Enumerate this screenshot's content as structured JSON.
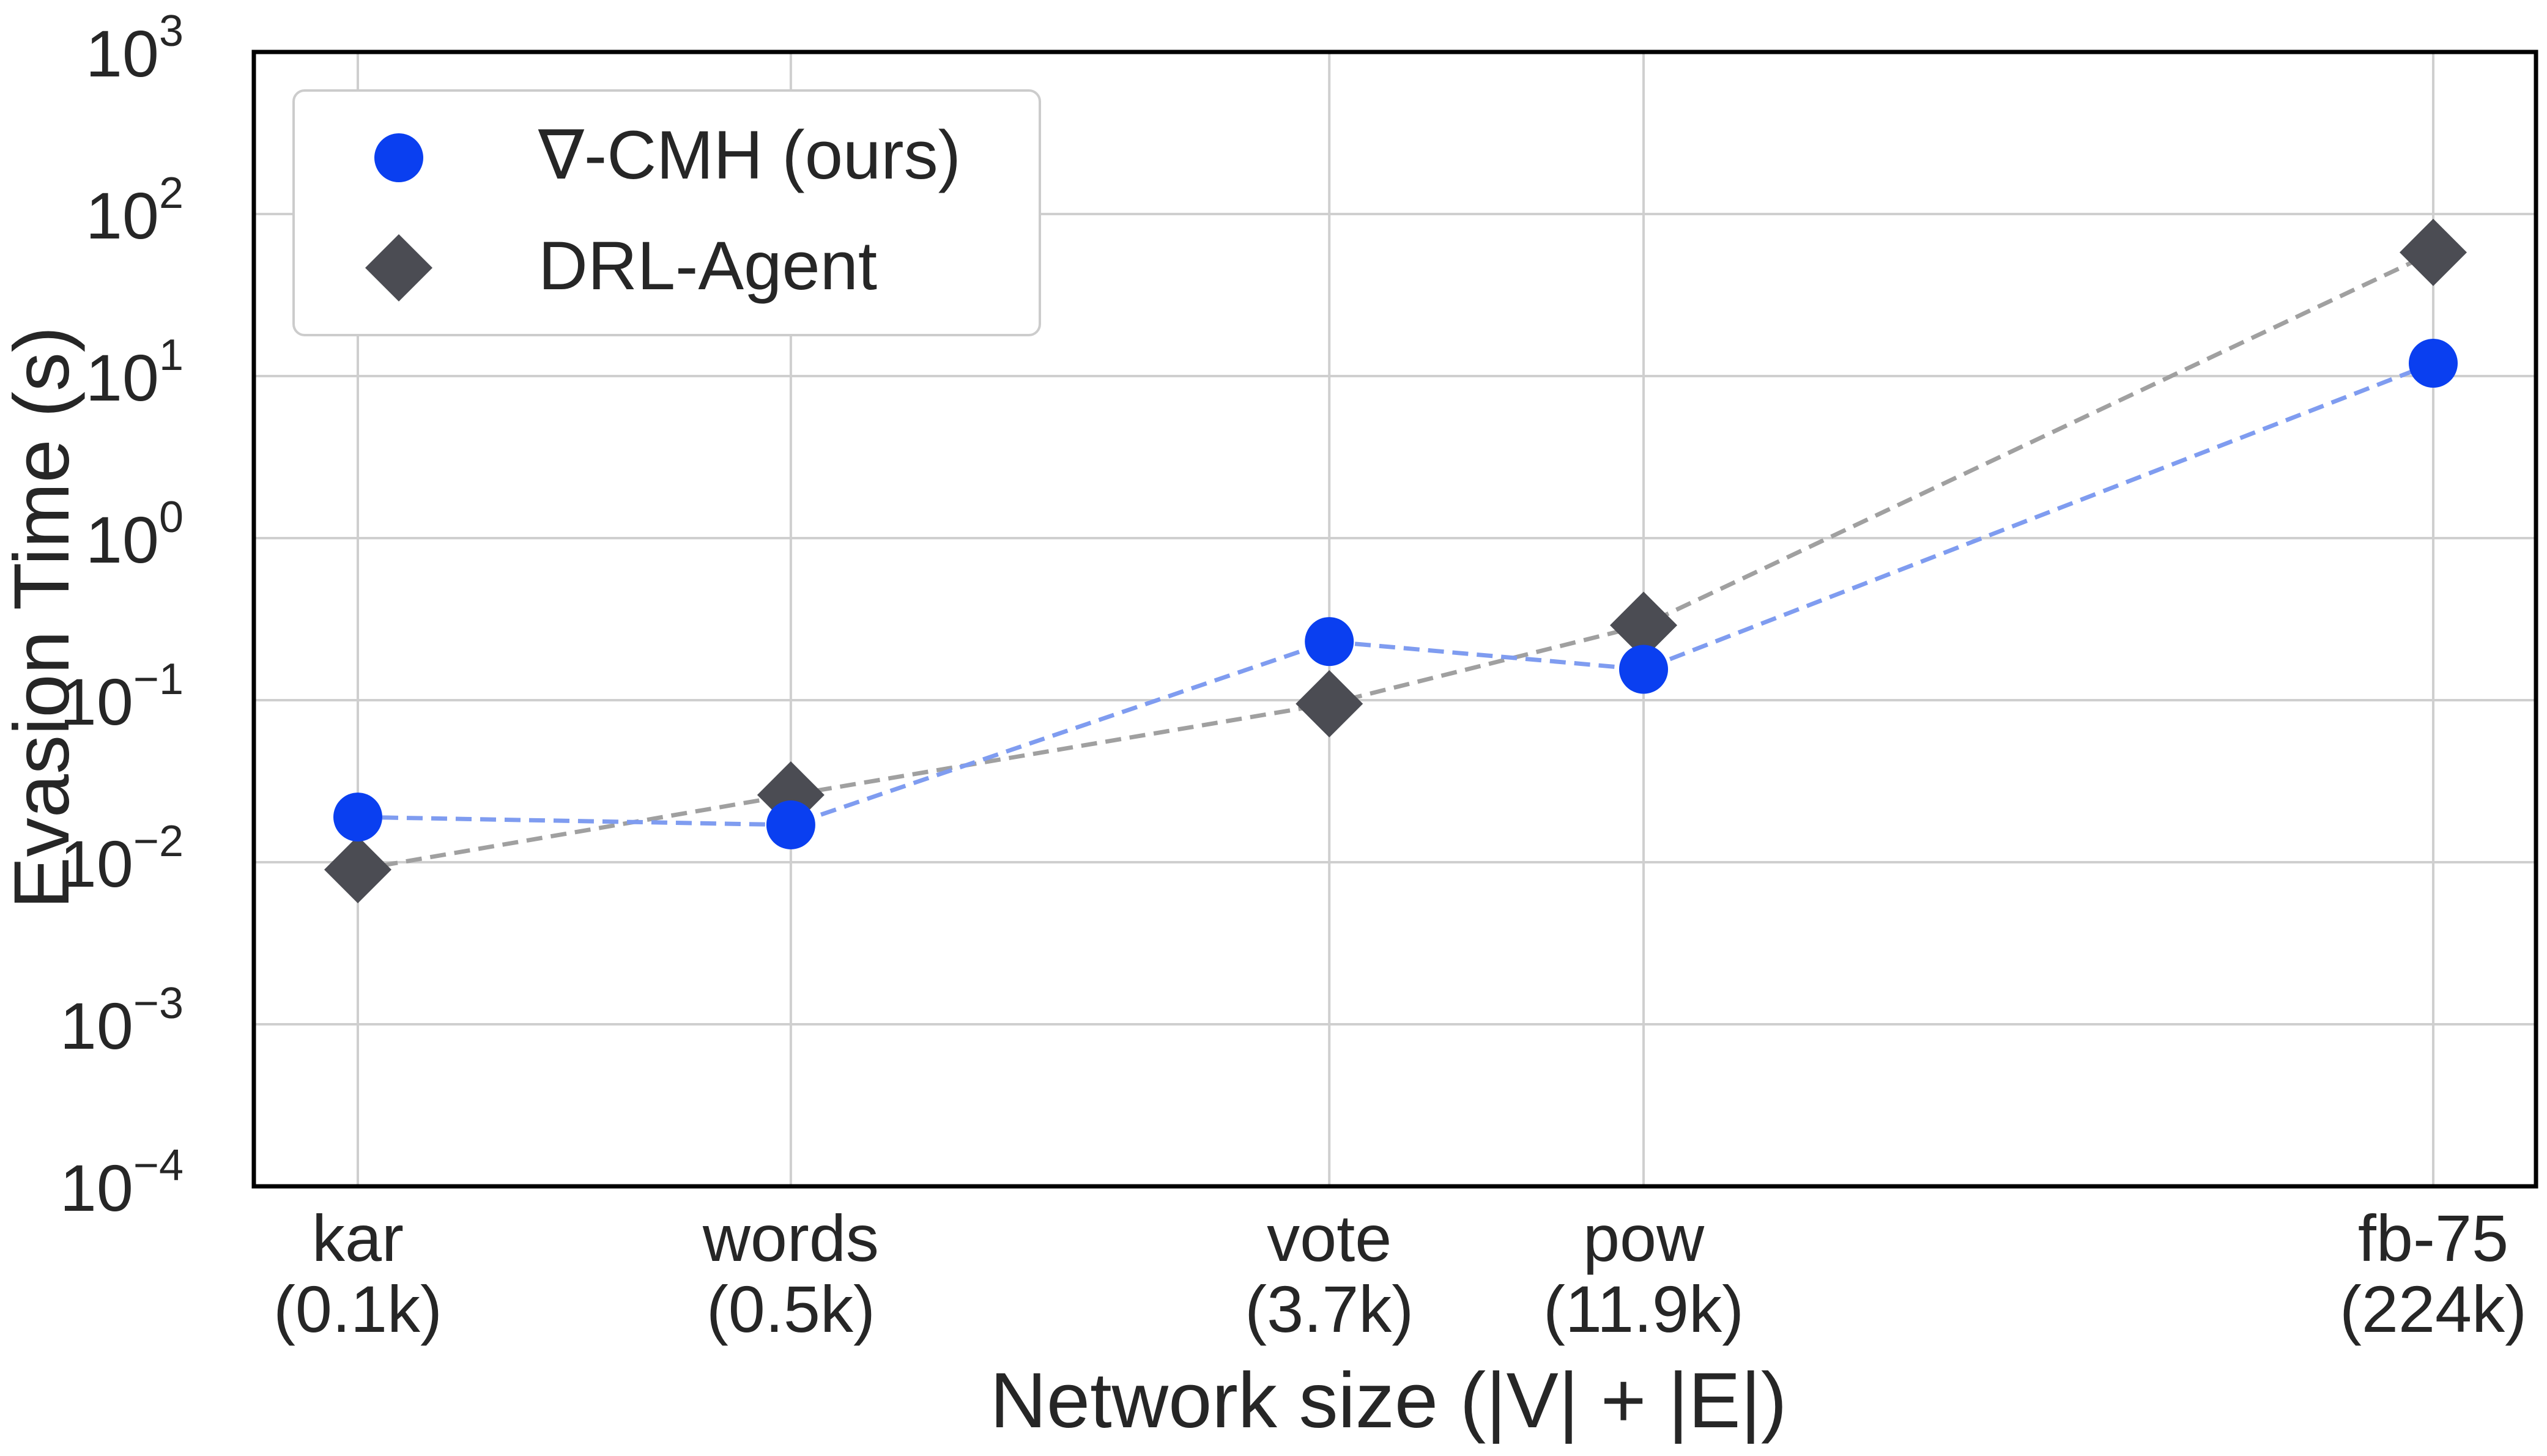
{
  "chart_data": {
    "type": "scatter",
    "ylabel": "Evasion Time (s)",
    "xlabel": "Network size (|V| + |E|)",
    "yscale": "log",
    "ylim": [
      0.0001,
      1000
    ],
    "yticks": [
      {
        "value": 0.001,
        "base": "10",
        "exp": "3",
        "neg": true
      },
      {
        "value": 0.01,
        "base": "10",
        "exp": "2",
        "neg": true
      },
      {
        "value": 0.1,
        "base": "10",
        "exp": "1",
        "neg": true
      },
      {
        "value": 1,
        "base": "10",
        "exp": "0",
        "neg": false
      },
      {
        "value": 10,
        "base": "10",
        "exp": "1",
        "neg": false
      },
      {
        "value": 100,
        "base": "10",
        "exp": "2",
        "neg": false
      },
      {
        "value": 1000,
        "base": "10",
        "exp": "3",
        "neg": false
      },
      {
        "value": 0.0001,
        "base": "10",
        "exp": "4",
        "neg": true
      }
    ],
    "xscale": "log",
    "x_sizes": [
      100,
      500,
      3700,
      11900,
      224000
    ],
    "categories": [
      {
        "name": "kar",
        "size": "(0.1k)"
      },
      {
        "name": "words",
        "size": "(0.5k)"
      },
      {
        "name": "vote",
        "size": "(3.7k)"
      },
      {
        "name": "pow",
        "size": "(11.9k)"
      },
      {
        "name": "fb-75",
        "size": "(224k)"
      }
    ],
    "grid": true,
    "legend_position": "top-left",
    "series": [
      {
        "name": "∇-CMH (ours)",
        "marker": "circle",
        "color": "#0a3ff0",
        "line_color": "#7f9cf0",
        "values": [
          0.019,
          0.017,
          0.23,
          0.155,
          12.0
        ]
      },
      {
        "name": "DRL-Agent",
        "marker": "diamond",
        "color": "#4b4c53",
        "line_color": "#a0a0a0",
        "values": [
          0.009,
          0.026,
          0.095,
          0.29,
          58.0
        ]
      }
    ]
  }
}
